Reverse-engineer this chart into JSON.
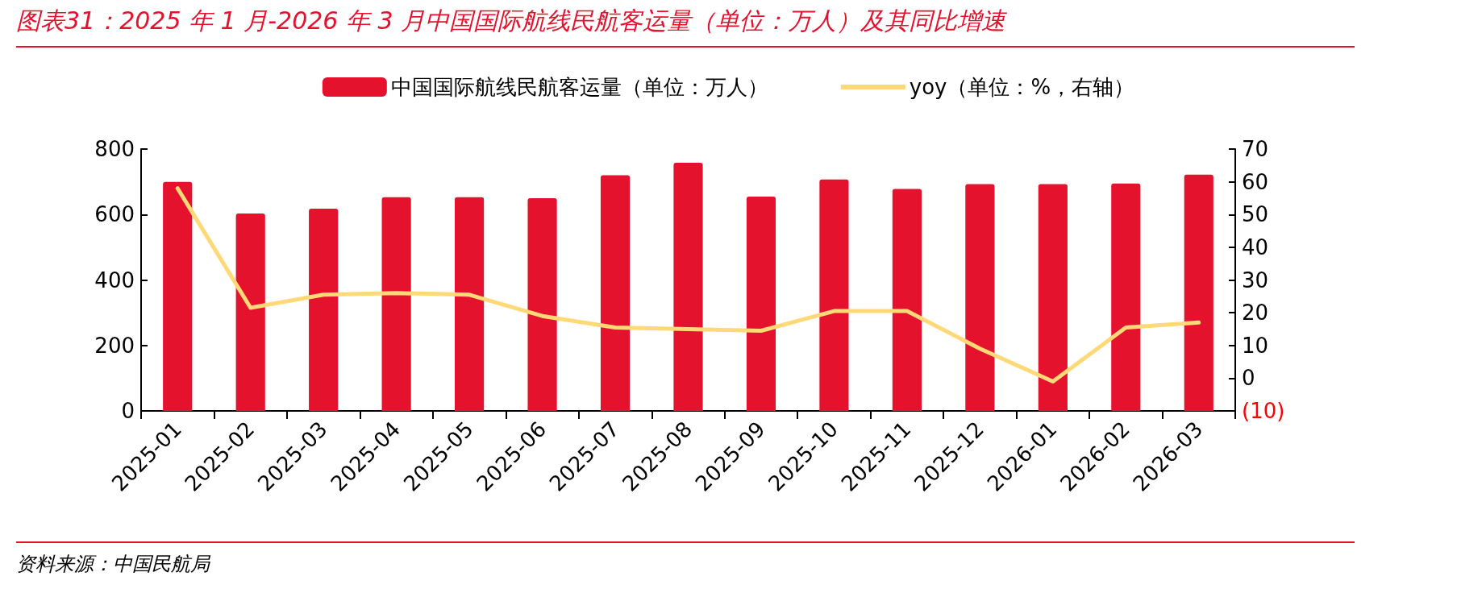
{
  "chart_data": {
    "type": "bar",
    "title": "图表31：2025 年 1 月-2026 年 3 月中国国际航线民航客运量（单位：万人）及其同比增速",
    "categories": [
      "2025-01",
      "2025-02",
      "2025-03",
      "2025-04",
      "2025-05",
      "2025-06",
      "2025-07",
      "2025-08",
      "2025-09",
      "2025-10",
      "2025-11",
      "2025-12",
      "2026-01",
      "2026-02",
      "2026-03"
    ],
    "series": [
      {
        "name": "中国国际航线民航客运量（单位：万人）",
        "color": "#e5122d",
        "values": [
          700,
          603,
          618,
          653,
          653,
          650,
          720,
          758,
          655,
          707,
          678,
          693,
          693,
          695,
          722
        ]
      },
      {
        "name": "yoy（单位：%，右轴）",
        "type": "line",
        "axis": "y2",
        "color": "#ffd978",
        "values": [
          58,
          21.5,
          25.5,
          26,
          25.5,
          19,
          15.5,
          15,
          14.5,
          20.5,
          20.5,
          9,
          -1,
          15.5,
          17
        ]
      }
    ],
    "ylim": [
      0,
      800
    ],
    "yticks": [
      0,
      200,
      400,
      600,
      800
    ],
    "y2lim": [
      -10,
      70
    ],
    "y2ticks": [
      {
        "value": -10,
        "label": "(10)"
      },
      0,
      10,
      20,
      30,
      40,
      50,
      60,
      70
    ],
    "grid": false,
    "legend": "top",
    "marker": "none",
    "line_style": "solid",
    "annotations": [
      "资料来源：中国民航局"
    ]
  }
}
